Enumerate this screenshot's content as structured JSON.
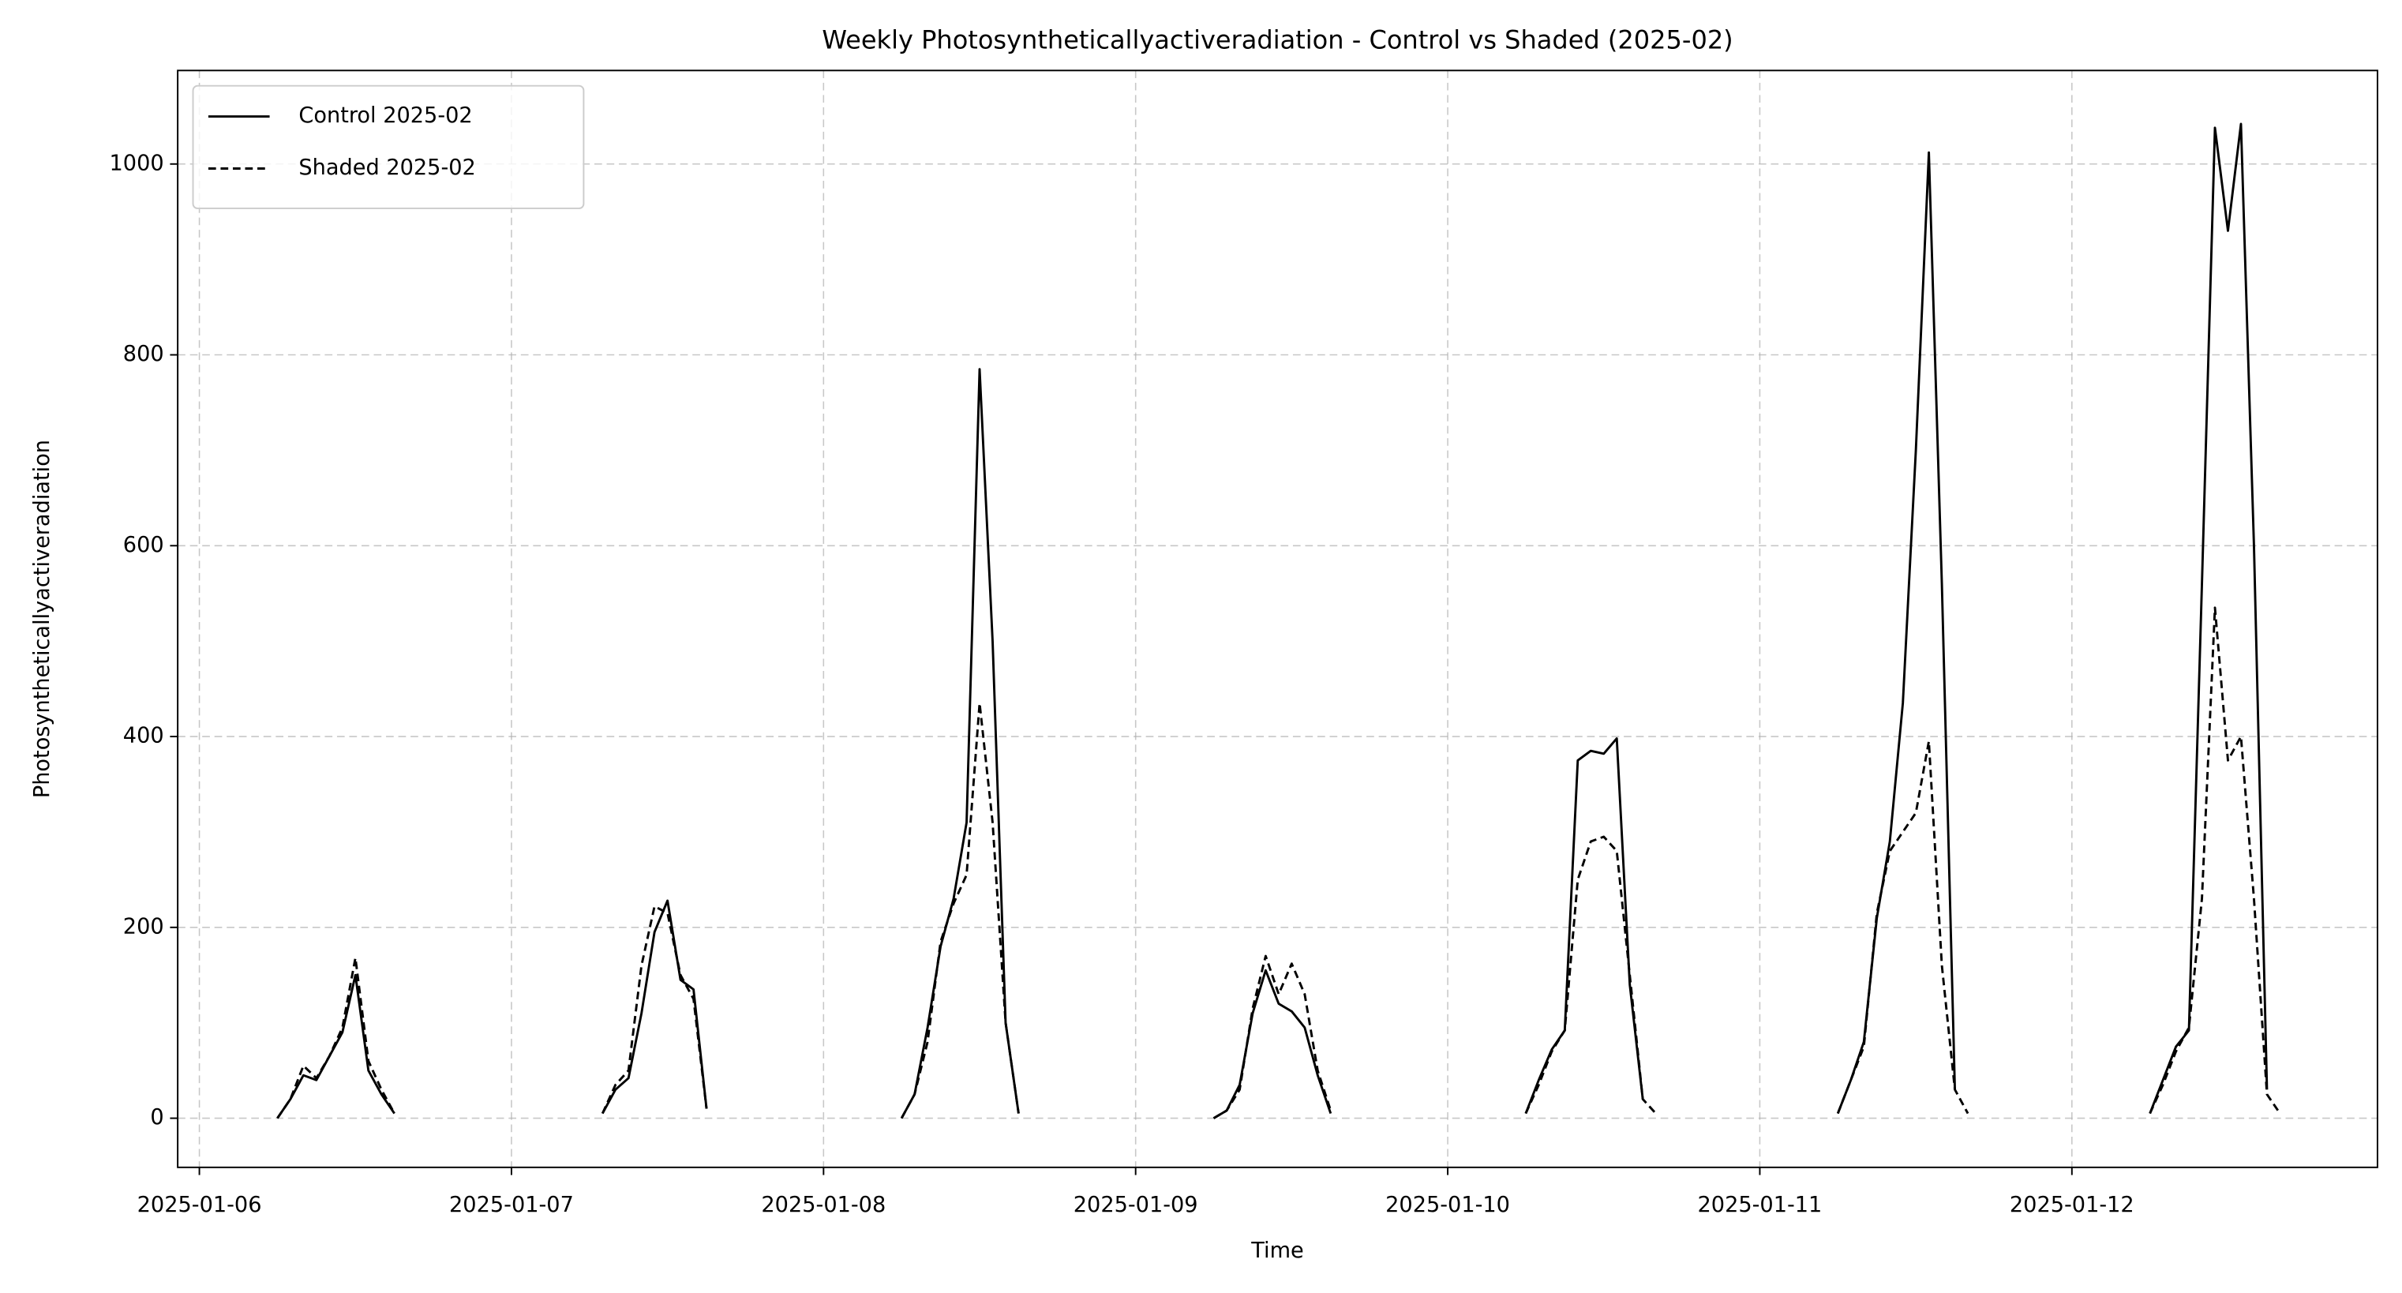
{
  "chart_data": {
    "type": "line",
    "title": "Weekly Photosyntheticallyactiveradiation - Control vs Shaded (2025-02)",
    "x_label": "Time",
    "y_label": "Photosyntheticallyactiveradiation",
    "xlim": [
      "2025-01-05T22:20",
      "2025-01-12T23:30"
    ],
    "ylim": [
      -51.5,
      1098
    ],
    "xticks": [
      "2025-01-06",
      "2025-01-07",
      "2025-01-08",
      "2025-01-09",
      "2025-01-10",
      "2025-01-11",
      "2025-01-12"
    ],
    "yticks": [
      0,
      200,
      400,
      600,
      800,
      1000
    ],
    "grid": true,
    "legend": "upper left",
    "x": [
      "2025-01-06T06:00",
      "2025-01-06T07:00",
      "2025-01-06T08:00",
      "2025-01-06T09:00",
      "2025-01-06T10:00",
      "2025-01-06T11:00",
      "2025-01-06T12:00",
      "2025-01-06T13:00",
      "2025-01-06T14:00",
      "2025-01-06T15:00",
      "2025-01-06T16:00",
      "2025-01-07T07:00",
      "2025-01-07T08:00",
      "2025-01-07T09:00",
      "2025-01-07T10:00",
      "2025-01-07T11:00",
      "2025-01-07T12:00",
      "2025-01-07T13:00",
      "2025-01-07T14:00",
      "2025-01-07T15:00",
      "2025-01-07T16:00",
      "2025-01-08T06:00",
      "2025-01-08T07:00",
      "2025-01-08T08:00",
      "2025-01-08T09:00",
      "2025-01-08T10:00",
      "2025-01-08T11:00",
      "2025-01-08T12:00",
      "2025-01-08T13:00",
      "2025-01-08T14:00",
      "2025-01-08T15:00",
      "2025-01-08T16:00",
      "2025-01-09T06:00",
      "2025-01-09T07:00",
      "2025-01-09T08:00",
      "2025-01-09T09:00",
      "2025-01-09T10:00",
      "2025-01-09T11:00",
      "2025-01-09T12:00",
      "2025-01-09T13:00",
      "2025-01-09T14:00",
      "2025-01-09T15:00",
      "2025-01-09T16:00",
      "2025-01-10T06:00",
      "2025-01-10T07:00",
      "2025-01-10T08:00",
      "2025-01-10T09:00",
      "2025-01-10T10:00",
      "2025-01-10T11:00",
      "2025-01-10T12:00",
      "2025-01-10T13:00",
      "2025-01-10T14:00",
      "2025-01-10T15:00",
      "2025-01-10T16:00",
      "2025-01-10T17:00",
      "2025-01-11T06:00",
      "2025-01-11T07:00",
      "2025-01-11T08:00",
      "2025-01-11T09:00",
      "2025-01-11T10:00",
      "2025-01-11T11:00",
      "2025-01-11T12:00",
      "2025-01-11T13:00",
      "2025-01-11T14:00",
      "2025-01-11T15:00",
      "2025-01-11T16:00",
      "2025-01-11T17:00",
      "2025-01-12T06:00",
      "2025-01-12T07:00",
      "2025-01-12T08:00",
      "2025-01-12T09:00",
      "2025-01-12T10:00",
      "2025-01-12T11:00",
      "2025-01-12T12:00",
      "2025-01-12T13:00",
      "2025-01-12T14:00",
      "2025-01-12T15:00",
      "2025-01-12T16:00"
    ],
    "series": [
      {
        "name": "Control 2025-02",
        "color": "#000000",
        "dash": "solid",
        "values": [
          0,
          20,
          45,
          40,
          65,
          90,
          150,
          50,
          25,
          5,
          null,
          5,
          30,
          42,
          110,
          195,
          228,
          145,
          135,
          10,
          null,
          0,
          25,
          95,
          180,
          230,
          310,
          785,
          500,
          100,
          5,
          null,
          0,
          8,
          35,
          110,
          155,
          120,
          112,
          95,
          45,
          5,
          null,
          5,
          40,
          72,
          92,
          375,
          385,
          382,
          398,
          140,
          20,
          null,
          null,
          5,
          40,
          80,
          210,
          290,
          435,
          700,
          1012,
          560,
          30,
          null,
          null,
          5,
          40,
          75,
          92,
          560,
          1038,
          930,
          1042,
          600,
          30,
          null
        ]
      },
      {
        "name": "Shaded 2025-02",
        "color": "#000000",
        "dash": "dashed",
        "values": [
          0,
          20,
          55,
          42,
          65,
          95,
          168,
          60,
          30,
          5,
          null,
          5,
          35,
          50,
          160,
          222,
          215,
          150,
          125,
          10,
          null,
          0,
          25,
          80,
          185,
          225,
          255,
          435,
          310,
          100,
          5,
          null,
          0,
          8,
          30,
          115,
          170,
          130,
          162,
          130,
          50,
          8,
          null,
          5,
          35,
          70,
          92,
          250,
          290,
          295,
          280,
          150,
          20,
          5,
          null,
          5,
          40,
          75,
          215,
          280,
          300,
          320,
          395,
          160,
          30,
          5,
          null,
          5,
          35,
          70,
          95,
          230,
          535,
          375,
          400,
          230,
          25,
          5
        ]
      }
    ]
  }
}
